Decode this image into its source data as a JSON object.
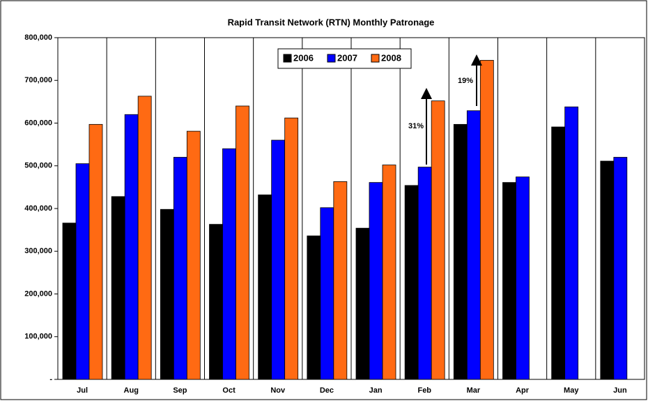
{
  "chart_data": {
    "type": "bar",
    "title": "Rapid Transit Network (RTN) Monthly Patronage",
    "categories": [
      "Jul",
      "Aug",
      "Sep",
      "Oct",
      "Nov",
      "Dec",
      "Jan",
      "Feb",
      "Mar",
      "Apr",
      "May",
      "Jun"
    ],
    "series": [
      {
        "name": "2006",
        "color": "#000000",
        "values": [
          366000,
          428000,
          398000,
          363000,
          432000,
          336000,
          354000,
          454000,
          597000,
          461000,
          591000,
          511000
        ]
      },
      {
        "name": "2007",
        "color": "#0000FF",
        "values": [
          505000,
          620000,
          520000,
          540000,
          560000,
          402000,
          461000,
          497000,
          629000,
          474000,
          638000,
          520000
        ]
      },
      {
        "name": "2008",
        "color": "#FF6A13",
        "values": [
          597000,
          663000,
          581000,
          640000,
          612000,
          463000,
          502000,
          652000,
          747000,
          null,
          null,
          null
        ]
      }
    ],
    "ylim": [
      0,
      800000
    ],
    "yticks": [
      {
        "value": 0,
        "label": "-"
      },
      {
        "value": 100000,
        "label": "100,000"
      },
      {
        "value": 200000,
        "label": "200,000"
      },
      {
        "value": 300000,
        "label": "300,000"
      },
      {
        "value": 400000,
        "label": "400,000"
      },
      {
        "value": 500000,
        "label": "500,000"
      },
      {
        "value": 600000,
        "label": "600,000"
      },
      {
        "value": 700000,
        "label": "700,000"
      },
      {
        "value": 800000,
        "label": "800,000"
      }
    ],
    "legend": "top",
    "annotations": [
      {
        "text": "31%"
      },
      {
        "text": "19%"
      }
    ]
  }
}
